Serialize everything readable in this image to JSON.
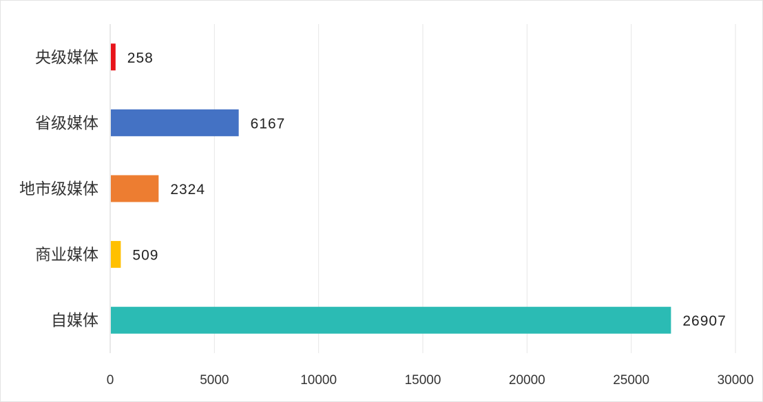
{
  "chart_data": {
    "type": "bar",
    "orientation": "horizontal",
    "categories": [
      "央级媒体",
      "省级媒体",
      "地市级媒体",
      "商业媒体",
      "自媒体"
    ],
    "values": [
      258,
      6167,
      2324,
      509,
      26907
    ],
    "colors": [
      "#e8141a",
      "#4472c4",
      "#ed7d31",
      "#ffc000",
      "#2bbbb4"
    ],
    "xlim": [
      0,
      30000
    ],
    "xticks": [
      0,
      5000,
      10000,
      15000,
      20000,
      25000,
      30000
    ],
    "tick_labels": [
      "0",
      "5000",
      "10000",
      "15000",
      "20000",
      "25000",
      "30000"
    ],
    "grid": true,
    "data_labels": true,
    "title": "",
    "xlabel": "",
    "ylabel": ""
  }
}
